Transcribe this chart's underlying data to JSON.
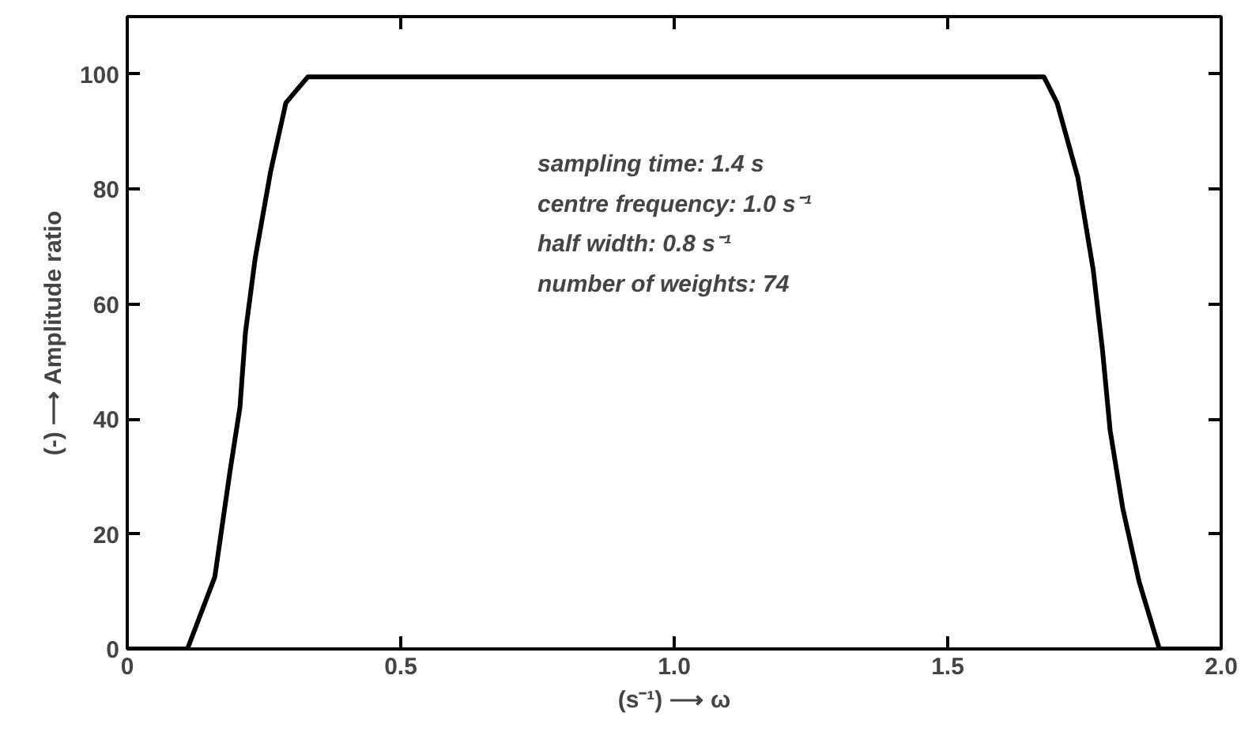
{
  "chart_data": {
    "type": "line",
    "xlabel": "(s⁻¹) ⟶ ω",
    "ylabel": "(-) ⟶ Amplitude ratio",
    "x": [
      0,
      0.11,
      0.16,
      0.188,
      0.206,
      0.216,
      0.234,
      0.262,
      0.29,
      0.33,
      0.5,
      1.0,
      1.5,
      1.676,
      1.7,
      1.738,
      1.766,
      1.783,
      1.797,
      1.82,
      1.85,
      1.887,
      2.0
    ],
    "series": [
      {
        "color": "#000000",
        "values": [
          0,
          0,
          12.5,
          31,
          42,
          55,
          68,
          83,
          95,
          99.5,
          99.5,
          99.5,
          99.5,
          99.5,
          95,
          82,
          66,
          52,
          38,
          24.5,
          11.7,
          0,
          0
        ]
      }
    ],
    "xlim": [
      0,
      2.0
    ],
    "ylim": [
      0,
      110
    ],
    "xticks": [
      0,
      0.5,
      {
        "value": 1.0,
        "label": "1.0"
      },
      1.5,
      {
        "value": 2.0,
        "label": "2.0"
      }
    ],
    "yticks": [
      0,
      20,
      40,
      60,
      80,
      100
    ],
    "grid": false,
    "marker": "none",
    "line_style": "solid",
    "annotations": [
      "sampling time:  1.4 s",
      "centre frequency:  1.0 s⁻¹",
      "half width:  0.8 s⁻¹",
      "number of weights:  74"
    ]
  }
}
